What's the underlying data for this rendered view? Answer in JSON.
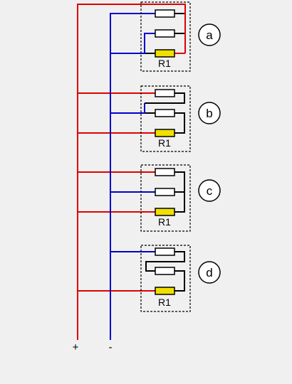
{
  "colors": {
    "positive": "#e00000",
    "negative": "#0000cc",
    "wire": "#000000",
    "resistor_fill": "#ffffff",
    "r1_fill": "#f0e000",
    "background": "#f0f0f0"
  },
  "rails": {
    "positive_label": "+",
    "negative_label": "-"
  },
  "circuits": [
    {
      "id": "a",
      "label": "a",
      "r1_label": "R1"
    },
    {
      "id": "b",
      "label": "b",
      "r1_label": "R1"
    },
    {
      "id": "c",
      "label": "c",
      "r1_label": "R1"
    },
    {
      "id": "d",
      "label": "d",
      "r1_label": "R1"
    }
  ]
}
